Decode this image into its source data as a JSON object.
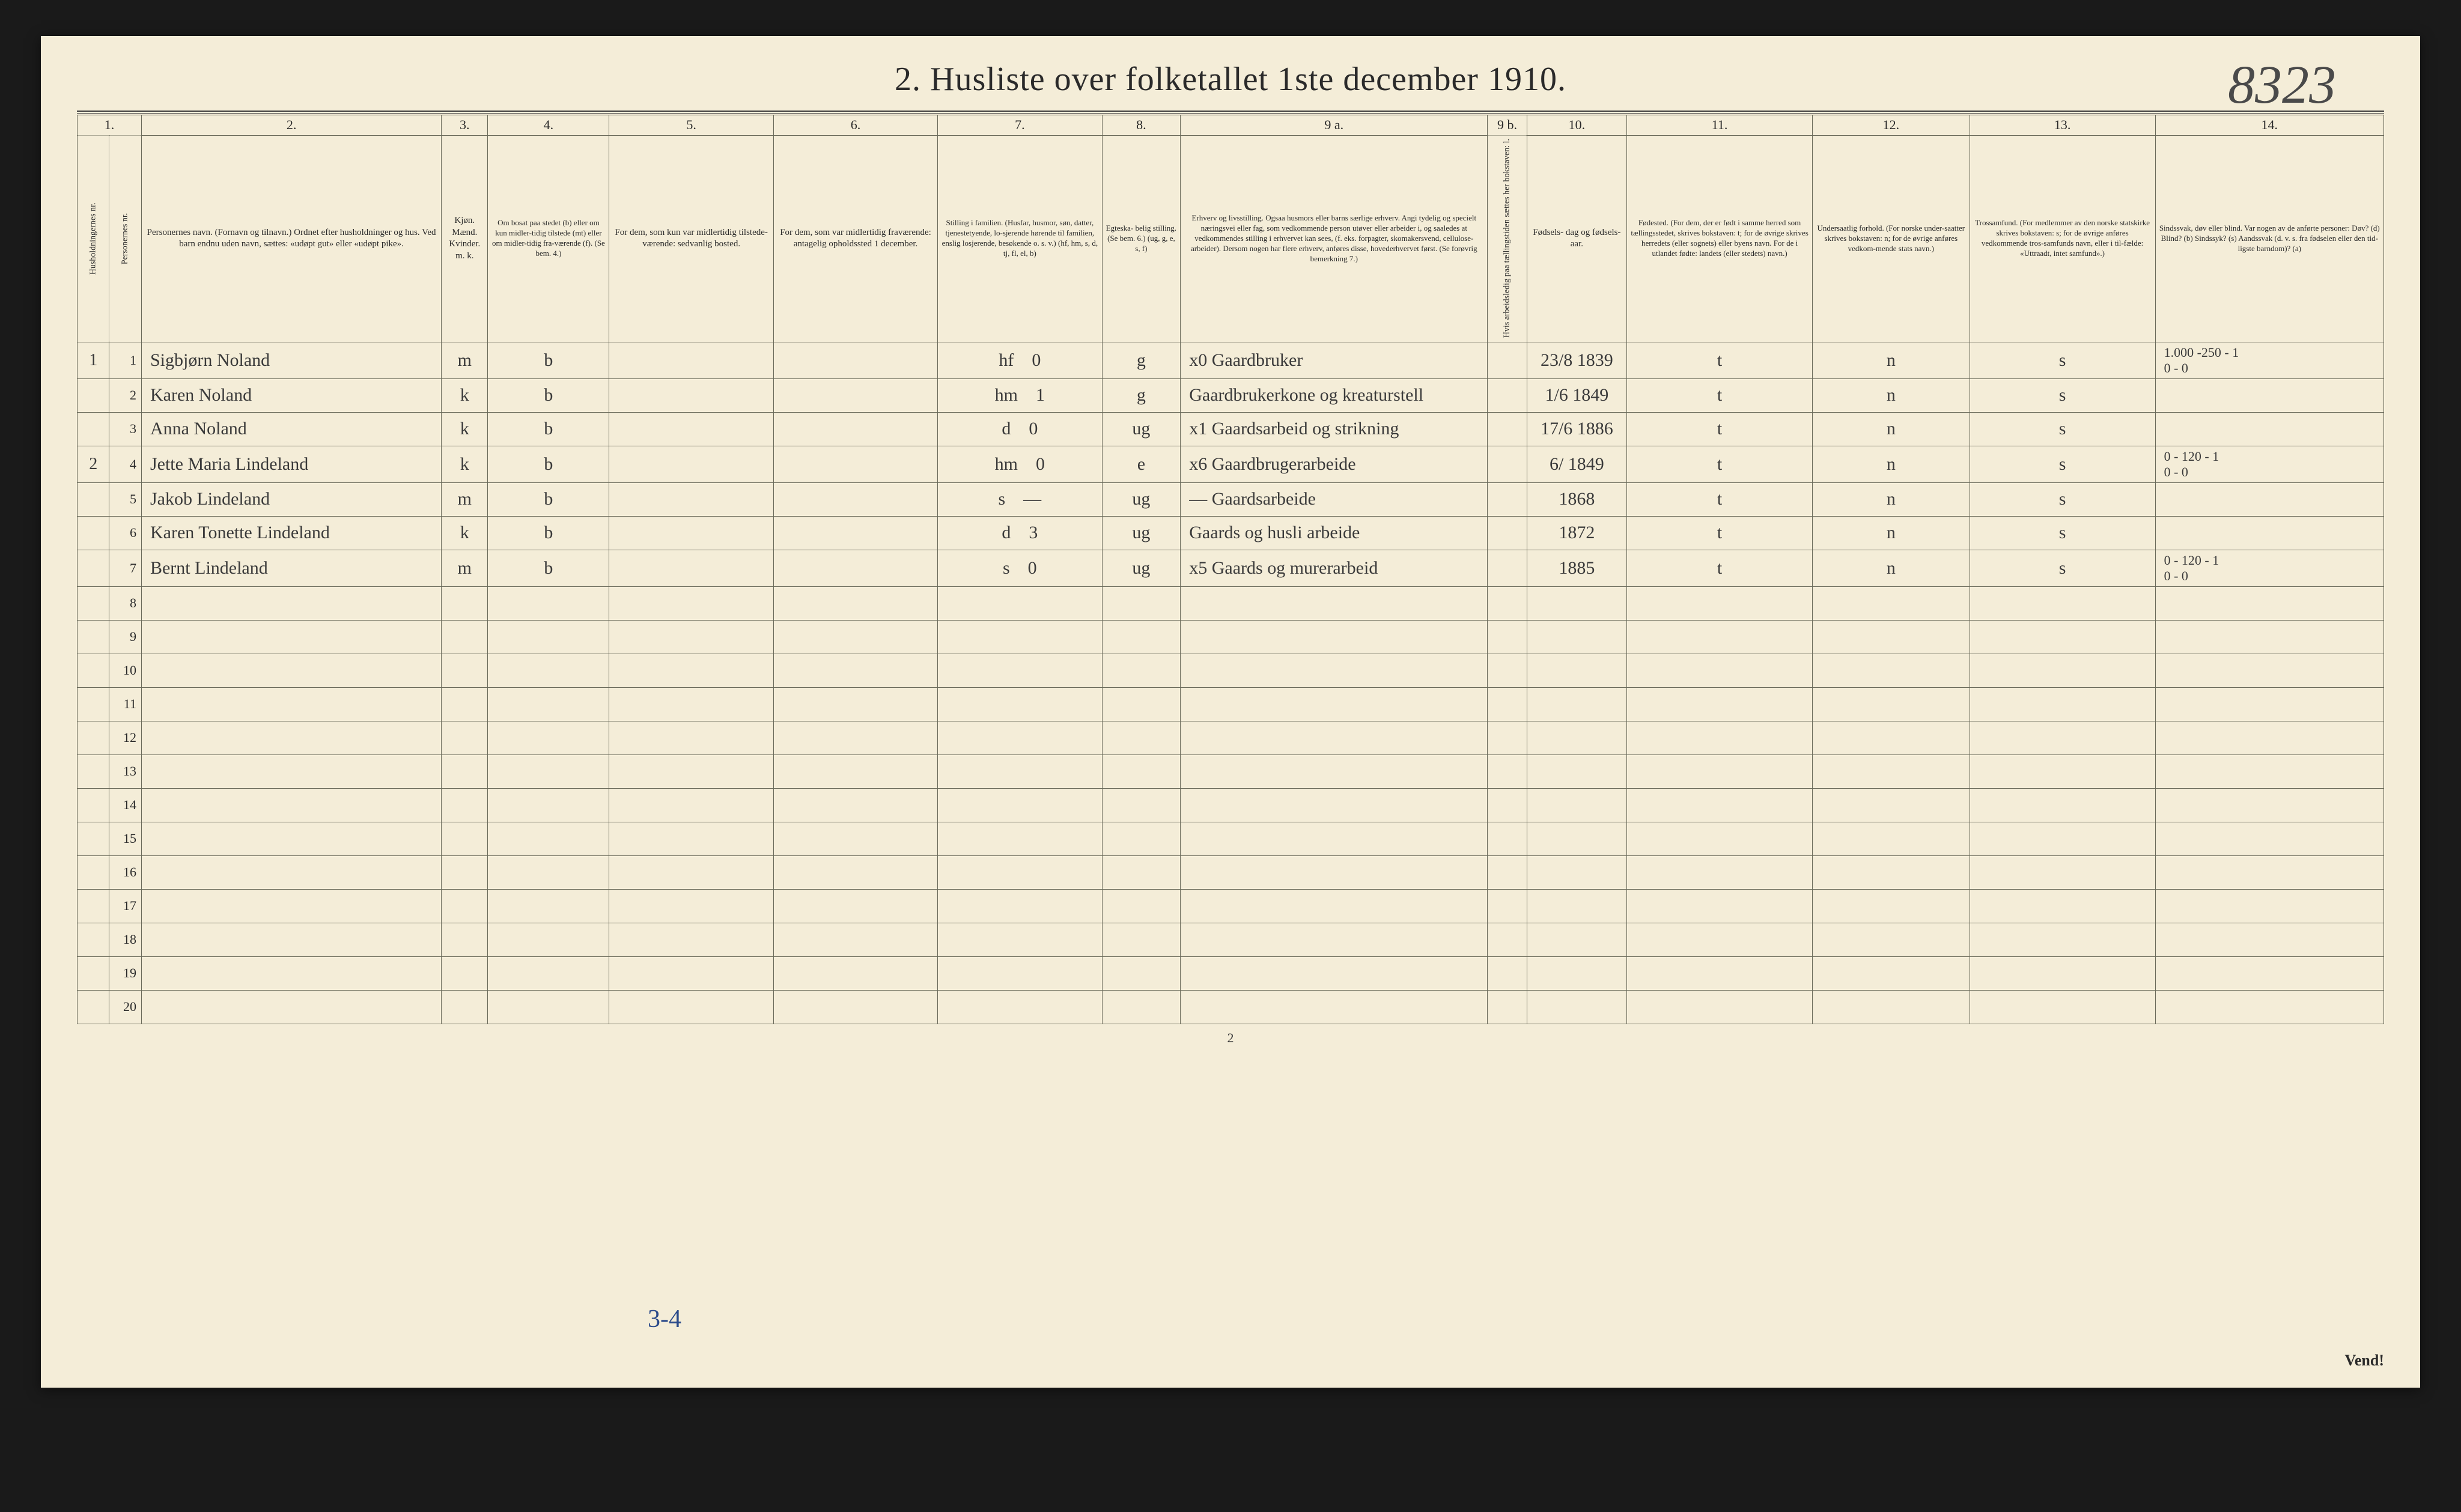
{
  "title": "2.  Husliste over folketallet 1ste december 1910.",
  "handwritten_number": "8323",
  "footer_page": "2",
  "footer_handnote": "3-4",
  "vend": "Vend!",
  "columns": {
    "c1": "1.",
    "c2": "2.",
    "c3": "3.",
    "c4": "4.",
    "c5": "5.",
    "c6": "6.",
    "c7": "7.",
    "c8": "8.",
    "c9": "9 a.",
    "c9b": "9 b.",
    "c10": "10.",
    "c11": "11.",
    "c12": "12.",
    "c13": "13.",
    "c14": "14."
  },
  "headers": {
    "h1a": "Husholdningernes nr.",
    "h1b": "Personernes nr.",
    "h2": "Personernes navn.\n(Fornavn og tilnavn.)\nOrdnet efter husholdninger og hus.\nVed barn endnu uden navn, sættes: «udøpt gut» eller «udøpt pike».",
    "h3": "Kjøn.\nMænd.\nKvinder.\nm. k.",
    "h4": "Om bosat paa stedet (b) eller om kun midler-tidig tilstede (mt) eller om midler-tidig fra-værende (f).\n(Se bem. 4.)",
    "h5": "For dem, som kun var\nmidlertidig tilstede-\nværende:\nsedvanlig bosted.",
    "h6": "For dem, som var\nmidlertidig\nfraværende:\nantagelig opholdssted\n1 december.",
    "h7": "Stilling i familien.\n(Husfar, husmor, søn, datter, tjenestetyende, lo-sjerende hørende til familien, enslig losjerende, besøkende o. s. v.)\n(hf, hm, s, d, tj, fl, el, b)",
    "h8": "Egteska-\nbelig\nstilling.\n(Se bem. 6.)\n(ug, g,\ne, s, f)",
    "h9": "Erhverv og livsstilling.\nOgsaa husmors eller barns særlige erhverv.\nAngi tydelig og specielt næringsvei eller fag, som vedkommende person utøver eller arbeider i, og saaledes at vedkommendes stilling i erhvervet kan sees, (f. eks. forpagter, skomakersvend, cellulose-arbeider). Dersom nogen har flere erhverv, anføres disse, hovederhvervet først.\n(Se forøvrig bemerkning 7.)",
    "h9b": "Hvis arbeidsledig paa tællingstiden sættes her bokstaven: l.",
    "h10": "Fødsels-\ndag\nog\nfødsels-\naar.",
    "h11": "Fødested.\n(For dem, der er født i samme herred som tællingsstedet, skrives bokstaven: t; for de øvrige skrives herredets (eller sognets) eller byens navn.\nFor de i utlandet fødte: landets (eller stedets) navn.)",
    "h12": "Undersaatlig\nforhold.\n(For norske under-saatter skrives bokstaven: n; for de øvrige anføres vedkom-mende stats navn.)",
    "h13": "Trossamfund.\n(For medlemmer av den norske statskirke skrives bokstaven: s; for de øvrige anføres vedkommende tros-samfunds navn, eller i til-fælde: «Uttraadt, intet samfund».)",
    "h14": "Sindssvak, døv\neller blind.\nVar nogen av de anførte personer:\nDøv?      (d)\nBlind?    (b)\nSindssyk? (s)\nAandssvak (d. v. s. fra fødselen eller den tid-ligste barndom)? (a)"
  },
  "rows": [
    {
      "hh": "1",
      "no": "1",
      "name": "Sigbjørn Noland",
      "sex": "m",
      "res": "b",
      "c5": "",
      "c6": "",
      "fam": "hf",
      "c7b": "0",
      "marital": "g",
      "occ": "x0  Gaardbruker",
      "c9b": "",
      "birth": "23/8 1839",
      "c11": "t",
      "c12": "n",
      "c13": "s",
      "c14": "1.000 -250 - 1\n0 - 0"
    },
    {
      "hh": "",
      "no": "2",
      "name": "Karen Noland",
      "sex": "k",
      "res": "b",
      "c5": "",
      "c6": "",
      "fam": "hm",
      "c7b": "1",
      "marital": "g",
      "occ": "Gaardbrukerkone og kreaturstell",
      "c9b": "",
      "birth": "1/6 1849",
      "c11": "t",
      "c12": "n",
      "c13": "s",
      "c14": ""
    },
    {
      "hh": "",
      "no": "3",
      "name": "Anna Noland",
      "sex": "k",
      "res": "b",
      "c5": "",
      "c6": "",
      "fam": "d",
      "c7b": "0",
      "marital": "ug",
      "occ": "x1 Gaardsarbeid og strikning",
      "c9b": "",
      "birth": "17/6 1886",
      "c11": "t",
      "c12": "n",
      "c13": "s",
      "c14": ""
    },
    {
      "hh": "2",
      "no": "4",
      "name": "Jette Maria Lindeland",
      "sex": "k",
      "res": "b",
      "c5": "",
      "c6": "",
      "fam": "hm",
      "c7b": "0",
      "marital": "e",
      "occ": "x6 Gaardbrugerarbeide",
      "c9b": "",
      "birth": "6/ 1849",
      "c11": "t",
      "c12": "n",
      "c13": "s",
      "c14": "0 - 120 - 1\n0 - 0"
    },
    {
      "hh": "",
      "no": "5",
      "name": "Jakob Lindeland",
      "sex": "m",
      "res": "b",
      "c5": "",
      "c6": "",
      "fam": "s",
      "c7b": "—",
      "marital": "ug",
      "occ": "— Gaardsarbeide",
      "c9b": "",
      "birth": "1868",
      "c11": "t",
      "c12": "n",
      "c13": "s",
      "c14": ""
    },
    {
      "hh": "",
      "no": "6",
      "name": "Karen Tonette Lindeland",
      "sex": "k",
      "res": "b",
      "c5": "",
      "c6": "",
      "fam": "d",
      "c7b": "3",
      "marital": "ug",
      "occ": "Gaards og husli arbeide",
      "c9b": "",
      "birth": "1872",
      "c11": "t",
      "c12": "n",
      "c13": "s",
      "c14": ""
    },
    {
      "hh": "",
      "no": "7",
      "name": "Bernt Lindeland",
      "sex": "m",
      "res": "b",
      "c5": "",
      "c6": "",
      "fam": "s",
      "c7b": "0",
      "marital": "ug",
      "occ": "x5 Gaards og murerarbeid",
      "c9b": "",
      "birth": "1885",
      "c11": "t",
      "c12": "n",
      "c13": "s",
      "c14": "0 - 120 - 1\n0 - 0"
    }
  ],
  "empty_rows": [
    "8",
    "9",
    "10",
    "11",
    "12",
    "13",
    "14",
    "15",
    "16",
    "17",
    "18",
    "19",
    "20"
  ]
}
